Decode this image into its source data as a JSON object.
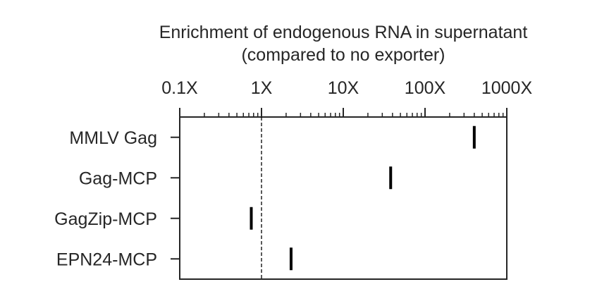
{
  "chart_data": {
    "type": "scatter",
    "title": "Enrichment of endogenous RNA in supernatant",
    "subtitle": "(compared to no exporter)",
    "x_scale": "log",
    "xlim": [
      0.1,
      1000
    ],
    "x_ticks": [
      0.1,
      1,
      10,
      100,
      1000
    ],
    "x_tick_labels": [
      "0.1X",
      "1X",
      "10X",
      "100X",
      "1000X"
    ],
    "x_axis_position": "top",
    "reference_line": {
      "x": 1,
      "style": "dashed"
    },
    "categories": [
      "MMLV Gag",
      "Gag-MCP",
      "GagZip-MCP",
      "EPN24-MCP"
    ],
    "values": [
      400,
      38,
      0.75,
      2.3
    ],
    "marker": "vertical-line",
    "grid": false,
    "colors": {
      "marker": "#000000",
      "axis": "#262626",
      "text": "#262626"
    }
  }
}
